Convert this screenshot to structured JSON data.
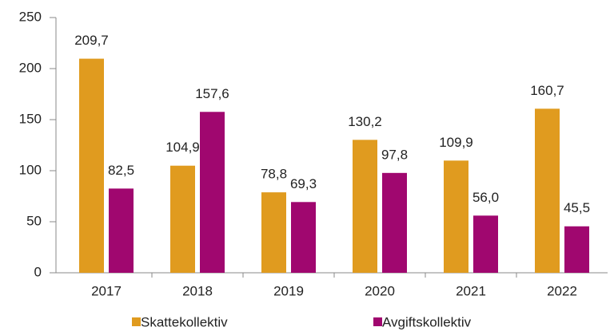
{
  "chart_data": {
    "type": "bar",
    "categories": [
      "2017",
      "2018",
      "2019",
      "2020",
      "2021",
      "2022"
    ],
    "series": [
      {
        "name": "Skattekollektiv",
        "color": "#e09b1f",
        "values": [
          209.7,
          104.9,
          78.8,
          130.2,
          109.9,
          160.7
        ],
        "value_labels": [
          "209,7",
          "104,9",
          "78,8",
          "130,2",
          "109,9",
          "160,7"
        ]
      },
      {
        "name": "Avgiftskollektiv",
        "color": "#a0076f",
        "values": [
          82.5,
          157.6,
          69.3,
          97.8,
          56.0,
          45.5
        ],
        "value_labels": [
          "82,5",
          "157,6",
          "69,3",
          "97,8",
          "56,0",
          "45,5"
        ]
      }
    ],
    "ylim": [
      0,
      250
    ],
    "yticks": [
      0,
      50,
      100,
      150,
      200,
      250
    ],
    "grid": false,
    "legend": "bottom"
  }
}
